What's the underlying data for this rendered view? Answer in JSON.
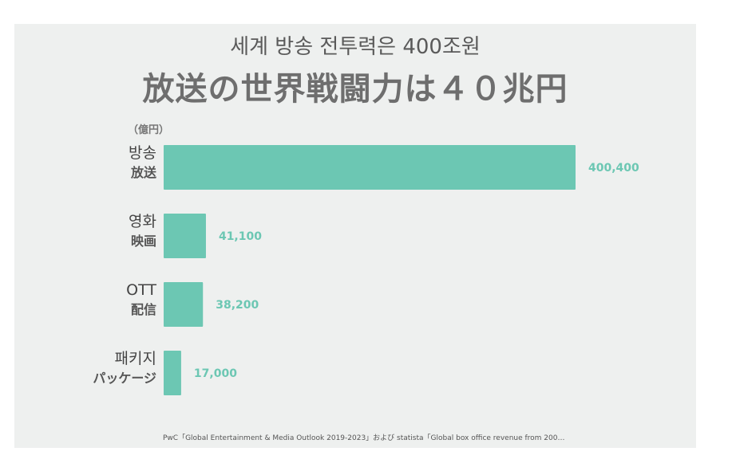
{
  "title_ko": "세계 방송 전투력은 400조원",
  "title_ja": "放送の世界戦闘力は４０兆円",
  "unit": "（億円）",
  "source": "PwC「Global Entertainment & Media Outlook 2019-2023」および statista「Global box office revenue from 200…",
  "colors": {
    "bar": "#6cc7b3",
    "value_label": "#6cc7b3"
  },
  "chart_data": {
    "type": "bar",
    "orientation": "horizontal",
    "categories": [
      {
        "ko": "방송",
        "ja": "放送"
      },
      {
        "ko": "영화",
        "ja": "映画"
      },
      {
        "ko": "OTT",
        "ja": "配信"
      },
      {
        "ko": "패키지",
        "ja": "パッケージ"
      }
    ],
    "values": [
      400400,
      41100,
      38200,
      17000
    ],
    "value_labels": [
      "400,400",
      "41,100",
      "38,200",
      "17,000"
    ],
    "xlim": [
      0,
      400400
    ],
    "grid": false
  }
}
